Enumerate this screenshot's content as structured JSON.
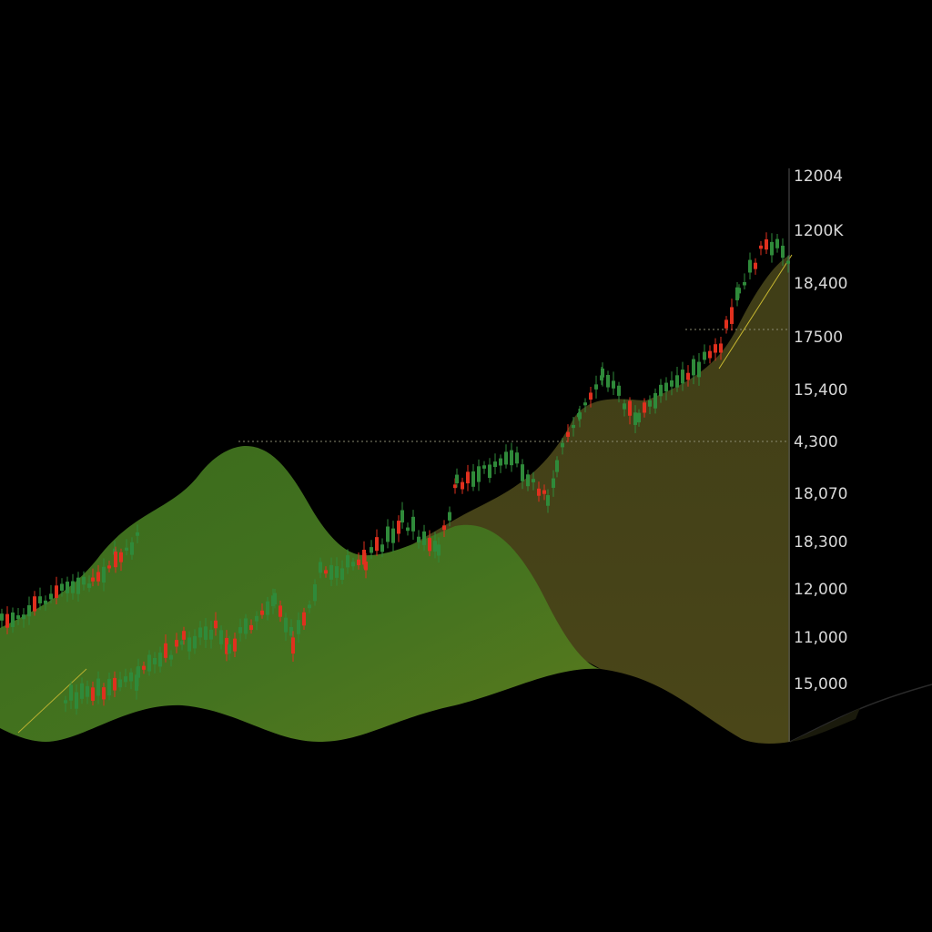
{
  "axis": {
    "labels": [
      "12004",
      "1200K",
      "18,400",
      "17500",
      "15,400",
      "4,300",
      "18,070",
      "18,300",
      "12,000",
      "11,000",
      "15,000"
    ]
  }
}
